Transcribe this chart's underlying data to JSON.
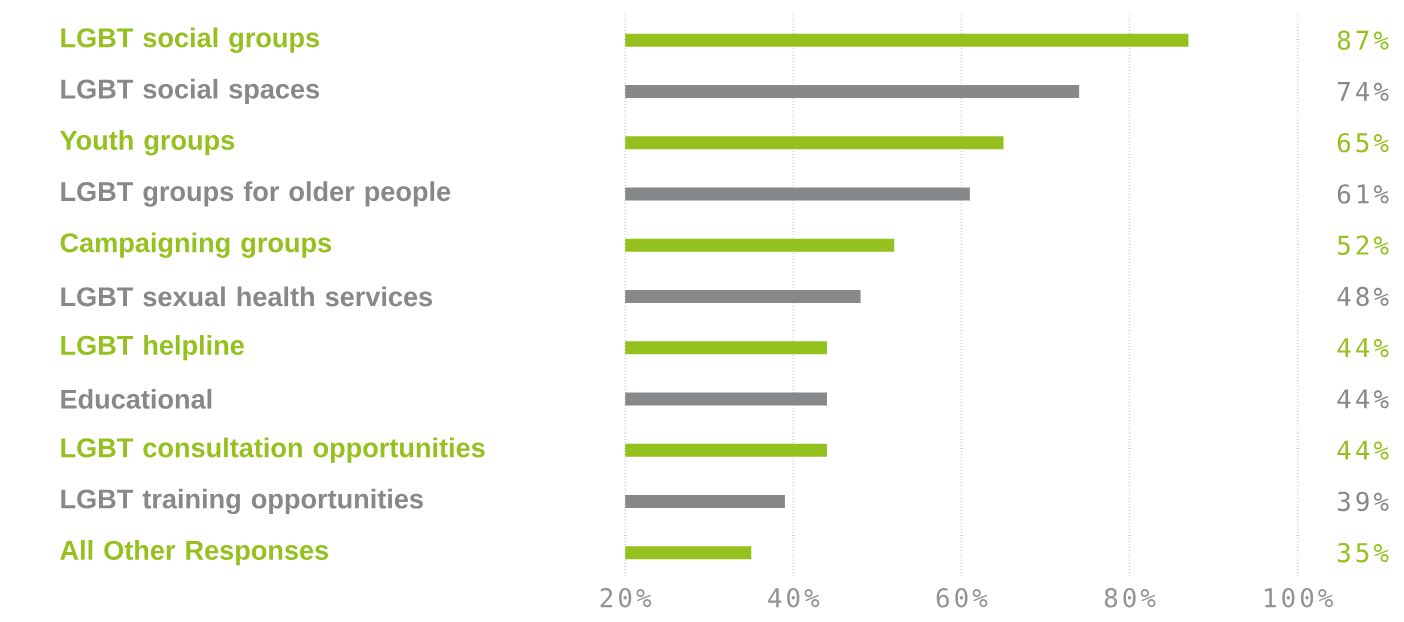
{
  "chart_data": {
    "type": "bar",
    "orientation": "horizontal",
    "categories": [
      "LGBT social groups",
      "LGBT social spaces",
      "Youth groups",
      "LGBT groups for older people",
      "Campaigning groups",
      "LGBT sexual health services",
      "LGBT helpline",
      "Educational",
      "LGBT consultation opportunities",
      "LGBT training opportunities",
      "All Other Responses"
    ],
    "values": [
      87,
      74,
      65,
      61,
      52,
      48,
      44,
      44,
      44,
      39,
      35
    ],
    "colors": [
      "#95c11f",
      "#87888a",
      "#95c11f",
      "#87888a",
      "#95c11f",
      "#87888a",
      "#95c11f",
      "#87888a",
      "#95c11f",
      "#87888a",
      "#95c11f"
    ],
    "value_labels": [
      "87%",
      "74%",
      "65%",
      "61%",
      "52%",
      "48%",
      "44%",
      "44%",
      "44%",
      "39%",
      "35%"
    ],
    "xlim": [
      20,
      100
    ],
    "xticks": [
      {
        "value": 20,
        "label": "20%"
      },
      {
        "value": 40,
        "label": "40%"
      },
      {
        "value": 60,
        "label": "60%"
      },
      {
        "value": 80,
        "label": "80%"
      },
      {
        "value": 100,
        "label": "100%"
      }
    ],
    "grid": "x"
  }
}
